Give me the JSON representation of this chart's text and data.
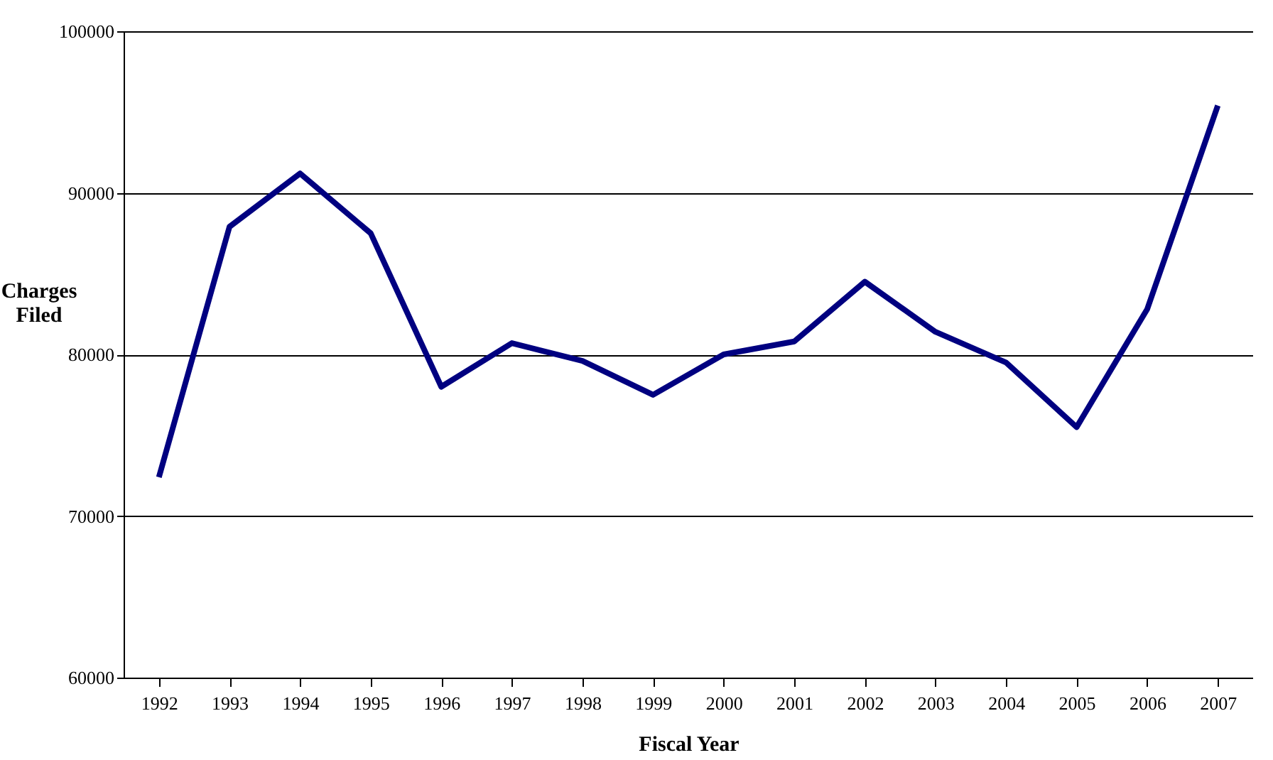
{
  "chart_data": {
    "type": "line",
    "xlabel": "Fiscal Year",
    "ylabel": "Charges Filed",
    "categories": [
      "1992",
      "1993",
      "1994",
      "1995",
      "1996",
      "1997",
      "1998",
      "1999",
      "2000",
      "2001",
      "2002",
      "2003",
      "2004",
      "2005",
      "2006",
      "2007"
    ],
    "series": [
      {
        "color": "#000080",
        "values": [
          72400,
          87900,
          91200,
          87500,
          78000,
          80700,
          79600,
          77500,
          80000,
          80800,
          84500,
          81400,
          79500,
          75500,
          82800,
          95400
        ]
      }
    ],
    "ylim": [
      60000,
      100000
    ],
    "yticks": [
      60000,
      70000,
      80000,
      90000,
      100000
    ],
    "grid": "y",
    "marker": "none",
    "line_style": "solid"
  }
}
